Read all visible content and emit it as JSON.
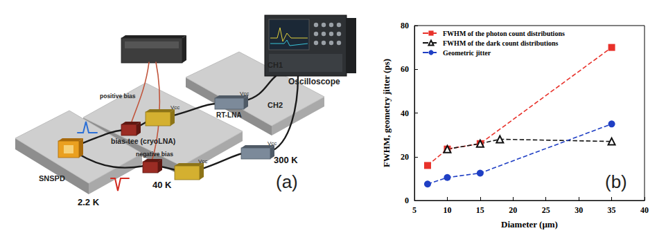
{
  "chart_data": {
    "type": "line",
    "annotation": "(b)",
    "x_label": "Diameter (μm)",
    "y_label": "FWHM, geometry jitter (ps)",
    "xlim": [
      5,
      40
    ],
    "xticks": [
      5,
      10,
      15,
      20,
      25,
      30,
      35,
      40
    ],
    "ylim": [
      0,
      80
    ],
    "yticks": [
      0,
      20,
      40,
      60,
      80
    ],
    "grid": false,
    "legend": "upper left",
    "series": [
      {
        "name": "FWHM of the photon count distributions",
        "color": "#e8312a",
        "marker": "square",
        "line_style": "dashed",
        "x": [
          7,
          10,
          15,
          35
        ],
        "values": [
          16,
          23.5,
          26,
          70
        ]
      },
      {
        "name": "FWHM of the dark count distributions",
        "color": "#111111",
        "marker": "triangle-open",
        "line_style": "dashed",
        "x": [
          10,
          15,
          18,
          35
        ],
        "values": [
          23.5,
          26,
          28,
          27
        ]
      },
      {
        "name": "Geometric jitter",
        "color": "#1f3fc4",
        "marker": "circle",
        "line_style": "dashed",
        "x": [
          7,
          10,
          15,
          35
        ],
        "values": [
          7.5,
          10.5,
          12.5,
          35
        ]
      }
    ]
  },
  "diagram": {
    "panel_label": "(a)",
    "stages": [
      "2.2 K",
      "40 K",
      "300 K"
    ],
    "components": {
      "detector": "SNSPD",
      "bias_tee": "bias-tee (cryoLNA)",
      "positive_bias": "positive bias",
      "negative_bias": "negative bias",
      "room_amp": "RT-LNA",
      "scope": "Oscilloscope",
      "channels": [
        "CH1",
        "CH2"
      ],
      "supply_label": "Vcc"
    }
  }
}
